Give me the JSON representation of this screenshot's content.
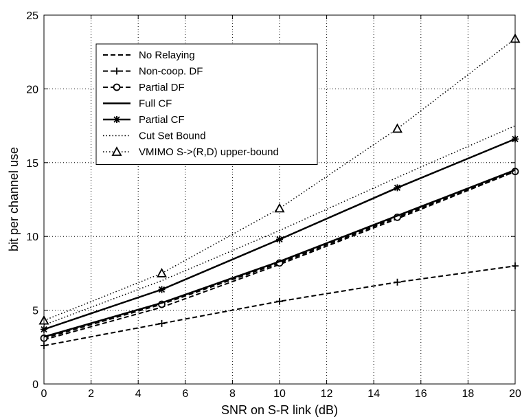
{
  "chart_data": {
    "type": "line",
    "xlabel": "SNR on S-R link (dB)",
    "ylabel": "bit per channel use",
    "xlim": [
      0,
      20
    ],
    "ylim": [
      0,
      25
    ],
    "xticks": [
      0,
      2,
      4,
      6,
      8,
      10,
      12,
      14,
      16,
      18,
      20
    ],
    "yticks": [
      0,
      5,
      10,
      15,
      20,
      25
    ],
    "grid": true,
    "legend_position": "top-left",
    "series": [
      {
        "name": "No Relaying",
        "style": "dashed",
        "marker": "none",
        "x": [
          0,
          5,
          10,
          15,
          20
        ],
        "y": [
          3.0,
          5.2,
          8.1,
          11.2,
          14.4
        ]
      },
      {
        "name": "Non-coop. DF",
        "style": "dashed",
        "marker": "plus",
        "x": [
          0,
          5,
          10,
          15,
          20
        ],
        "y": [
          2.6,
          4.1,
          5.6,
          6.9,
          8.0
        ]
      },
      {
        "name": "Partial DF",
        "style": "dashed",
        "marker": "circle",
        "x": [
          0,
          5,
          10,
          15,
          20
        ],
        "y": [
          3.1,
          5.4,
          8.2,
          11.3,
          14.4
        ]
      },
      {
        "name": "Full CF",
        "style": "solid",
        "marker": "none",
        "x": [
          0,
          5,
          10,
          15,
          20
        ],
        "y": [
          3.2,
          5.5,
          8.3,
          11.4,
          14.5
        ]
      },
      {
        "name": "Partial CF",
        "style": "solid",
        "marker": "star",
        "x": [
          0,
          5,
          10,
          15,
          20
        ],
        "y": [
          3.7,
          6.4,
          9.8,
          13.3,
          16.6
        ]
      },
      {
        "name": "Cut Set Bound",
        "style": "dotted",
        "marker": "none",
        "x": [
          0,
          5,
          10,
          15,
          20
        ],
        "y": [
          4.0,
          7.0,
          10.4,
          14.0,
          17.5
        ]
      },
      {
        "name": "VMIMO S->(R,D) upper-bound",
        "style": "dotted",
        "marker": "triangle",
        "x": [
          0,
          5,
          10,
          15,
          20
        ],
        "y": [
          4.3,
          7.5,
          11.9,
          17.3,
          23.4
        ]
      }
    ]
  }
}
